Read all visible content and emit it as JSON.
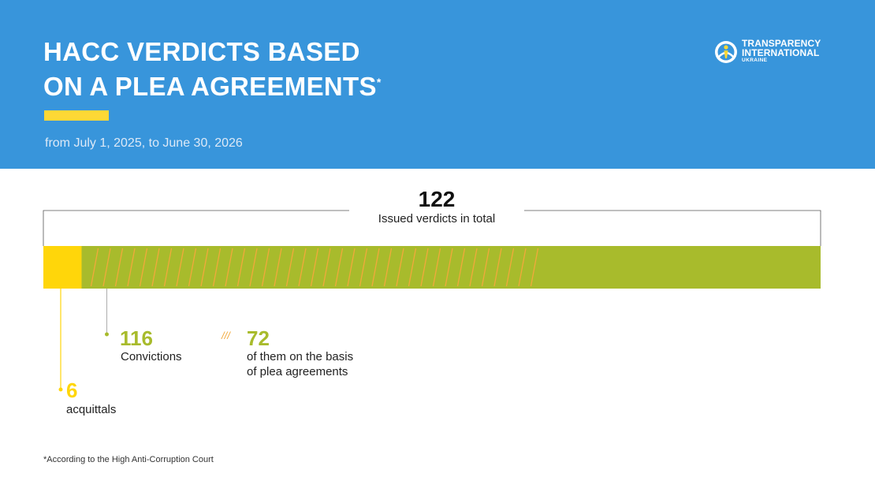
{
  "header": {
    "title_line1": "HACC VERDICTS BASED",
    "title_line2": "ON A PLEA AGREEMENTS",
    "title_mark": "*",
    "subtitle": "from July 1, 2025, to June 30, 2026"
  },
  "logo": {
    "line1": "TRANSPARENCY",
    "line2": "INTERNATIONAL",
    "line3": "UKRAINE"
  },
  "footnote": "*According to the High Anti-Corruption Court",
  "colors": {
    "header_bg": "#3895db",
    "accent_yellow": "#fdd835",
    "acquittals": "#ffd60a",
    "convictions": "#a8bb2c",
    "plea_hatch": "#f2a93b",
    "label_green": "#a8bb2c"
  },
  "chart_data": {
    "type": "bar",
    "orientation": "horizontal-stacked",
    "total": {
      "value": "122",
      "label": "Issued verdicts in total"
    },
    "segments": [
      {
        "name": "acquittals",
        "value": 6,
        "value_label": "6",
        "label": "acquittals",
        "color": "#ffd60a"
      },
      {
        "name": "Convictions",
        "value": 116,
        "value_label": "116",
        "label": "Convictions",
        "color": "#a8bb2c"
      }
    ],
    "subset": {
      "of": "Convictions",
      "value": 72,
      "value_label": "72",
      "label_line1": "of them on the basis",
      "label_line2": "of plea agreements",
      "pattern": "hatched",
      "legend_glyph": "///"
    }
  }
}
